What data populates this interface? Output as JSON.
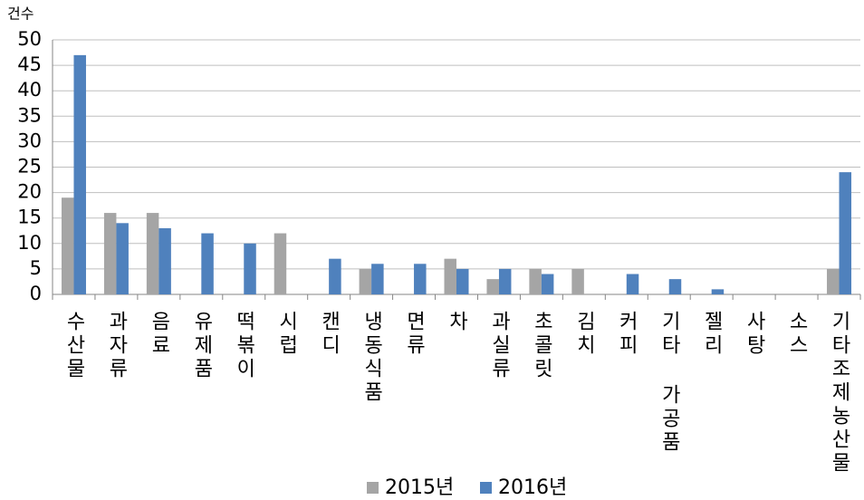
{
  "chart_data": {
    "type": "bar",
    "y_label": "건수",
    "categories": [
      "수산물",
      "과자류",
      "음료",
      "유제품",
      "떡볶이",
      "시럽",
      "캔디",
      "냉동식품",
      "면류",
      "차",
      "과실류",
      "초콜릿",
      "김치",
      "커피",
      "기타 가공품",
      "젤리",
      "사탕",
      "소스",
      "기타조제농산물"
    ],
    "series": [
      {
        "name": "2015년",
        "color": "#a5a5a5",
        "values": [
          19,
          16,
          16,
          0,
          0,
          12,
          0,
          5,
          0,
          7,
          3,
          5,
          5,
          0,
          0,
          0,
          0,
          0,
          5
        ]
      },
      {
        "name": "2016년",
        "color": "#4f81bd",
        "values": [
          47,
          14,
          13,
          12,
          10,
          0,
          7,
          6,
          6,
          5,
          5,
          4,
          0,
          4,
          3,
          1,
          0,
          0,
          24
        ]
      }
    ],
    "ylim": [
      0,
      50
    ],
    "yticks": [
      0,
      5,
      10,
      15,
      20,
      25,
      30,
      35,
      40,
      45,
      50
    ],
    "grid": true,
    "legend": "bottom"
  }
}
